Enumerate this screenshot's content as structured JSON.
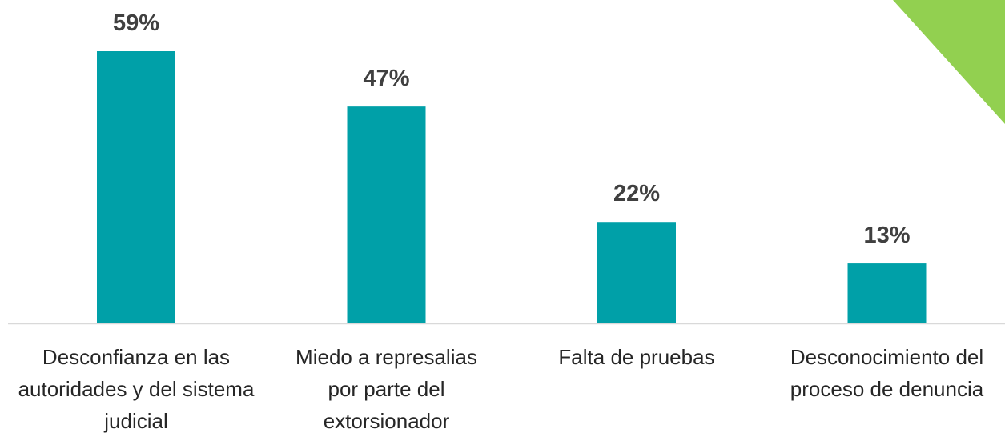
{
  "chart_data": {
    "type": "bar",
    "categories": [
      "Desconfianza en las autoridades y del sistema judicial",
      "Miedo a represalias por parte del extorsionador",
      "Falta de pruebas",
      "Desconocimiento del proceso de denuncia"
    ],
    "values": [
      59,
      47,
      22,
      13
    ],
    "value_labels": [
      "59%",
      "47%",
      "22%",
      "13%"
    ],
    "color": "#00a0a8"
  }
}
